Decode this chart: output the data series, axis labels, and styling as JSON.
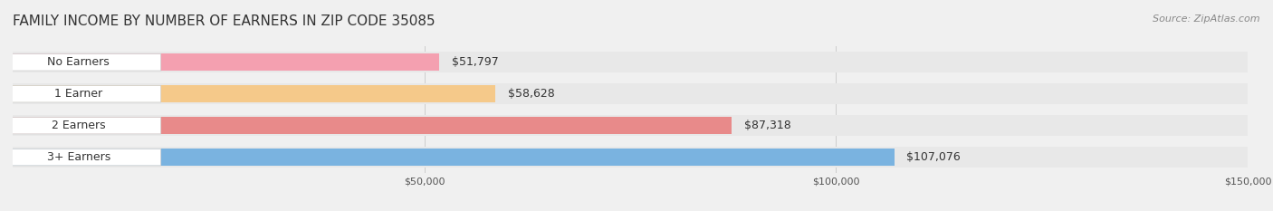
{
  "title": "FAMILY INCOME BY NUMBER OF EARNERS IN ZIP CODE 35085",
  "source": "Source: ZipAtlas.com",
  "categories": [
    "No Earners",
    "1 Earner",
    "2 Earners",
    "3+ Earners"
  ],
  "values": [
    51797,
    58628,
    87318,
    107076
  ],
  "bar_colors": [
    "#f4a0b0",
    "#f5c98a",
    "#e88a8a",
    "#7ab3e0"
  ],
  "label_colors": [
    "#e06080",
    "#e8a040",
    "#d05050",
    "#4080c0"
  ],
  "value_labels": [
    "$51,797",
    "$58,628",
    "$87,318",
    "$107,076"
  ],
  "xlim": [
    0,
    150000
  ],
  "xticks": [
    50000,
    100000,
    150000
  ],
  "xticklabels": [
    "$50,000",
    "$100,000",
    "$150,000"
  ],
  "background_color": "#f0f0f0",
  "bar_bg_color": "#e8e8e8",
  "title_fontsize": 11,
  "source_fontsize": 8,
  "bar_label_fontsize": 9,
  "value_fontsize": 9,
  "tick_fontsize": 8,
  "figsize": [
    14.06,
    2.33
  ],
  "dpi": 100
}
